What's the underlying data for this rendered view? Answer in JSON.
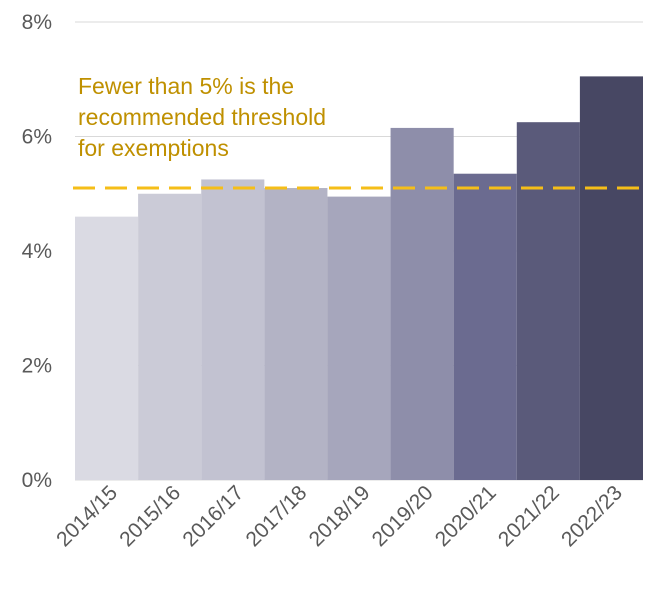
{
  "chart_data": {
    "type": "bar",
    "title": "",
    "xlabel": "",
    "ylabel": "",
    "categories": [
      "2014/15",
      "2015/16",
      "2016/17",
      "2017/18",
      "2018/19",
      "2019/20",
      "2020/21",
      "2021/22",
      "2022/23"
    ],
    "values": [
      4.6,
      5.0,
      5.25,
      5.1,
      4.95,
      6.15,
      5.35,
      6.25,
      7.05
    ],
    "value_unit": "%",
    "ylim": [
      0,
      8
    ],
    "yticks": [
      0,
      2,
      4,
      6,
      8
    ],
    "ytick_labels": [
      "0%",
      "2%",
      "4%",
      "6%",
      "8%"
    ],
    "grid": true,
    "bar_colors": [
      "#DADAE3",
      "#CBCBD7",
      "#C2C2D1",
      "#B3B3C5",
      "#A6A6BC",
      "#8E8EAA",
      "#6B6B90",
      "#5A5A7A",
      "#474763"
    ],
    "reference_line": {
      "value": 5.1,
      "style": "dashed",
      "color": "#F5BE18"
    },
    "annotation": {
      "lines": [
        "Fewer than 5% is the",
        "recommended threshold",
        "for exemptions"
      ],
      "color": "#BF9000"
    }
  }
}
